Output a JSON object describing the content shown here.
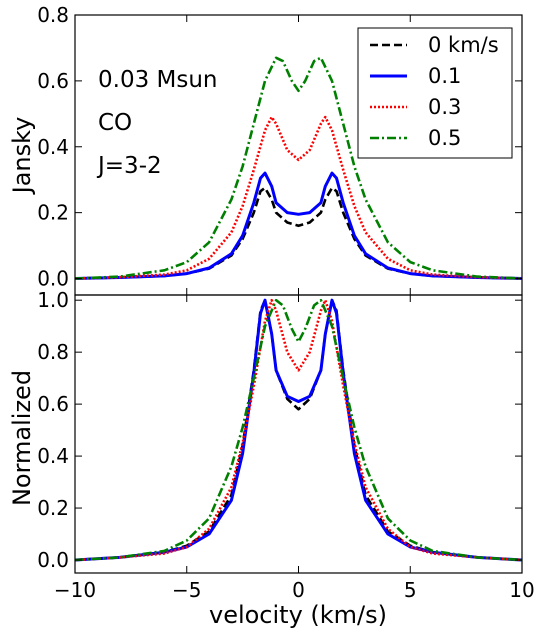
{
  "chart_data": [
    {
      "type": "line",
      "ylabel": "Jansky",
      "xlim": [
        -10,
        10
      ],
      "ylim": [
        -0.05,
        0.8
      ],
      "yticks": [
        0.0,
        0.2,
        0.4,
        0.6,
        0.8
      ],
      "ytick_labels": [
        "0.0",
        "0.2",
        "0.4",
        "0.6",
        "0.8"
      ],
      "annotations": [
        "0.03 Msun",
        "CO",
        "J=3-2"
      ],
      "legend": {
        "placement": "top-right"
      },
      "series": [
        {
          "name": "0 km/s",
          "color": "#000000",
          "style": "dashed",
          "x": [
            -10,
            -8,
            -6,
            -5,
            -4,
            -3,
            -2.5,
            -2,
            -1.7,
            -1.5,
            -1.2,
            -1,
            -0.5,
            0,
            0.5,
            1,
            1.2,
            1.5,
            1.7,
            2,
            2.5,
            3,
            4,
            5,
            6,
            8,
            10
          ],
          "y": [
            0.0,
            0.003,
            0.008,
            0.015,
            0.03,
            0.07,
            0.12,
            0.2,
            0.265,
            0.275,
            0.24,
            0.2,
            0.17,
            0.16,
            0.17,
            0.2,
            0.24,
            0.275,
            0.265,
            0.2,
            0.12,
            0.07,
            0.03,
            0.015,
            0.008,
            0.003,
            0.0
          ]
        },
        {
          "name": "0.1",
          "color": "#0000ff",
          "style": "solid",
          "x": [
            -10,
            -8,
            -6,
            -5,
            -4,
            -3,
            -2.5,
            -2,
            -1.7,
            -1.5,
            -1.2,
            -1,
            -0.5,
            0,
            0.5,
            1,
            1.2,
            1.5,
            1.7,
            2,
            2.5,
            3,
            4,
            5,
            6,
            8,
            10
          ],
          "y": [
            0.0,
            0.003,
            0.008,
            0.015,
            0.032,
            0.075,
            0.13,
            0.23,
            0.305,
            0.32,
            0.28,
            0.23,
            0.2,
            0.195,
            0.2,
            0.23,
            0.28,
            0.32,
            0.305,
            0.23,
            0.13,
            0.075,
            0.032,
            0.015,
            0.008,
            0.003,
            0.0
          ]
        },
        {
          "name": "0.3",
          "color": "#ff0000",
          "style": "dotted",
          "x": [
            -10,
            -8,
            -6,
            -5,
            -4,
            -3,
            -2.5,
            -2,
            -1.5,
            -1.2,
            -1,
            -0.5,
            0,
            0.5,
            1,
            1.2,
            1.5,
            2,
            2.5,
            3,
            4,
            5,
            6,
            8,
            10
          ],
          "y": [
            0.0,
            0.004,
            0.012,
            0.025,
            0.06,
            0.14,
            0.22,
            0.33,
            0.45,
            0.49,
            0.47,
            0.39,
            0.36,
            0.39,
            0.47,
            0.49,
            0.45,
            0.33,
            0.22,
            0.14,
            0.06,
            0.025,
            0.012,
            0.004,
            0.0
          ]
        },
        {
          "name": "0.5",
          "color": "#008000",
          "style": "dashdot",
          "x": [
            -10,
            -8,
            -6,
            -5,
            -4,
            -3,
            -2.5,
            -2,
            -1.5,
            -1,
            -0.7,
            -0.3,
            0,
            0.3,
            0.7,
            1,
            1.5,
            2,
            2.5,
            3,
            4,
            5,
            6,
            8,
            10
          ],
          "y": [
            0.0,
            0.006,
            0.025,
            0.05,
            0.11,
            0.24,
            0.34,
            0.47,
            0.6,
            0.67,
            0.66,
            0.6,
            0.57,
            0.6,
            0.66,
            0.67,
            0.6,
            0.47,
            0.34,
            0.24,
            0.11,
            0.05,
            0.025,
            0.006,
            0.0
          ]
        }
      ]
    },
    {
      "type": "line",
      "xlabel": "velocity (km/s)",
      "ylabel": "Normalized",
      "xlim": [
        -10,
        10
      ],
      "ylim": [
        -0.05,
        1.02
      ],
      "xticks": [
        -10,
        -5,
        0,
        5,
        10
      ],
      "xtick_labels": [
        "−10",
        "−5",
        "0",
        "5",
        "10"
      ],
      "yticks": [
        0.0,
        0.2,
        0.4,
        0.6,
        0.8,
        1.0
      ],
      "ytick_labels": [
        "0.0",
        "0.2",
        "0.4",
        "0.6",
        "0.8",
        "1.0"
      ],
      "series": [
        {
          "name": "0 km/s",
          "color": "#000000",
          "style": "dashed",
          "x": [
            -10,
            -8,
            -6,
            -5,
            -4,
            -3,
            -2.5,
            -2,
            -1.7,
            -1.5,
            -1.2,
            -1,
            -0.5,
            0,
            0.5,
            1,
            1.2,
            1.5,
            1.7,
            2,
            2.5,
            3,
            4,
            5,
            6,
            8,
            10
          ],
          "y": [
            0.0,
            0.01,
            0.03,
            0.055,
            0.11,
            0.25,
            0.44,
            0.73,
            0.96,
            1.0,
            0.87,
            0.73,
            0.62,
            0.58,
            0.62,
            0.73,
            0.87,
            1.0,
            0.96,
            0.73,
            0.44,
            0.25,
            0.11,
            0.055,
            0.03,
            0.01,
            0.0
          ]
        },
        {
          "name": "0.1",
          "color": "#0000ff",
          "style": "solid",
          "x": [
            -10,
            -8,
            -6,
            -5,
            -4,
            -3,
            -2.5,
            -2,
            -1.7,
            -1.5,
            -1.2,
            -1,
            -0.5,
            0,
            0.5,
            1,
            1.2,
            1.5,
            1.7,
            2,
            2.5,
            3,
            4,
            5,
            6,
            8,
            10
          ],
          "y": [
            0.0,
            0.01,
            0.03,
            0.05,
            0.1,
            0.23,
            0.41,
            0.72,
            0.95,
            1.0,
            0.87,
            0.73,
            0.63,
            0.61,
            0.63,
            0.73,
            0.87,
            1.0,
            0.95,
            0.72,
            0.41,
            0.23,
            0.1,
            0.05,
            0.03,
            0.01,
            0.0
          ]
        },
        {
          "name": "0.3",
          "color": "#ff0000",
          "style": "dotted",
          "x": [
            -10,
            -8,
            -6,
            -5,
            -4,
            -3,
            -2.5,
            -2,
            -1.5,
            -1.2,
            -1,
            -0.5,
            0,
            0.5,
            1,
            1.2,
            1.5,
            2,
            2.5,
            3,
            4,
            5,
            6,
            8,
            10
          ],
          "y": [
            0.0,
            0.01,
            0.025,
            0.05,
            0.12,
            0.28,
            0.45,
            0.67,
            0.92,
            1.0,
            0.96,
            0.8,
            0.73,
            0.8,
            0.96,
            1.0,
            0.92,
            0.67,
            0.45,
            0.28,
            0.12,
            0.05,
            0.025,
            0.01,
            0.0
          ]
        },
        {
          "name": "0.5",
          "color": "#008000",
          "style": "dashdot",
          "x": [
            -10,
            -8,
            -6,
            -5,
            -4,
            -3,
            -2.5,
            -2,
            -1.5,
            -1,
            -0.7,
            -0.3,
            0,
            0.3,
            0.7,
            1,
            1.5,
            2,
            2.5,
            3,
            4,
            5,
            6,
            8,
            10
          ],
          "y": [
            0.0,
            0.01,
            0.035,
            0.075,
            0.16,
            0.36,
            0.51,
            0.7,
            0.9,
            1.0,
            0.98,
            0.89,
            0.84,
            0.89,
            0.98,
            1.0,
            0.9,
            0.7,
            0.51,
            0.36,
            0.16,
            0.075,
            0.035,
            0.01,
            0.0
          ]
        }
      ]
    }
  ]
}
